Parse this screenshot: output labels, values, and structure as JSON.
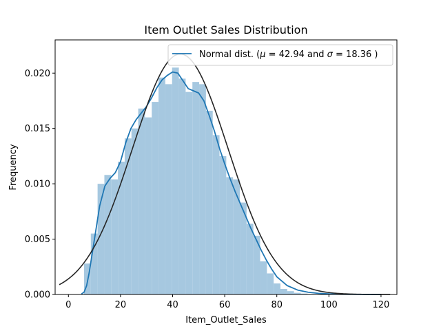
{
  "chart_data": {
    "type": "bar",
    "title": "Item Outlet Sales Distribution",
    "xlabel": "Item_Outlet_Sales",
    "ylabel": "Frequency",
    "xlim": [
      -5.1,
      126.1
    ],
    "ylim": [
      0,
      0.023
    ],
    "xticks": [
      0,
      20,
      40,
      60,
      80,
      100,
      120
    ],
    "xtick_labels": [
      "0",
      "20",
      "40",
      "60",
      "80",
      "100",
      "120"
    ],
    "yticks": [
      0.0,
      0.005,
      0.01,
      0.015,
      0.02
    ],
    "ytick_labels": [
      "0.000",
      "0.005",
      "0.010",
      "0.015",
      "0.020"
    ],
    "grid": false,
    "legend_position": "top-right",
    "legend": {
      "label_prefix": "Normal dist. (",
      "mu_symbol": "μ",
      "eq1": " = 42.94 and ",
      "sigma_symbol": "σ",
      "eq2": " =  18.36 )"
    },
    "normal_fit": {
      "mu": 42.94,
      "sigma": 18.36,
      "x_range": [
        -3.5,
        123.5
      ]
    },
    "histogram": {
      "bin_start": 6.0,
      "bin_width": 2.6,
      "values": [
        0.0028,
        0.0055,
        0.01,
        0.0108,
        0.0104,
        0.012,
        0.0141,
        0.015,
        0.0168,
        0.016,
        0.0174,
        0.0196,
        0.019,
        0.0205,
        0.0195,
        0.0183,
        0.0192,
        0.019,
        0.0166,
        0.0144,
        0.0125,
        0.0106,
        0.0104,
        0.0083,
        0.0064,
        0.0053,
        0.003,
        0.0019,
        0.001,
        0.0005,
        0.0003,
        0.00015,
        8e-05,
        4e-05
      ]
    },
    "kde": {
      "x": [
        5,
        6,
        7,
        8,
        10,
        12,
        14,
        16,
        18,
        20,
        22,
        24,
        26,
        28,
        30,
        32,
        34,
        36,
        38,
        40,
        42,
        44,
        46,
        48,
        50,
        52,
        54,
        56,
        58,
        60,
        62,
        64,
        66,
        68,
        70,
        72,
        74,
        76,
        78,
        80,
        84,
        88,
        92,
        96,
        100,
        105,
        110,
        115,
        120
      ],
      "y": [
        5e-05,
        0.0002,
        0.0008,
        0.002,
        0.005,
        0.008,
        0.0098,
        0.0105,
        0.011,
        0.012,
        0.0137,
        0.015,
        0.0158,
        0.0164,
        0.017,
        0.0178,
        0.0187,
        0.0194,
        0.0198,
        0.0201,
        0.02,
        0.0193,
        0.0186,
        0.0184,
        0.0182,
        0.0175,
        0.0162,
        0.0148,
        0.0132,
        0.0118,
        0.0105,
        0.0093,
        0.0082,
        0.0071,
        0.006,
        0.005,
        0.004,
        0.0031,
        0.0023,
        0.0016,
        0.0008,
        0.0004,
        0.0002,
        0.0001,
        5e-05,
        2e-05,
        1e-05,
        5e-06,
        2e-06
      ]
    },
    "colors": {
      "hist": "#a6c8e0",
      "kde": "#1f77b4",
      "normal": "#262626"
    }
  }
}
